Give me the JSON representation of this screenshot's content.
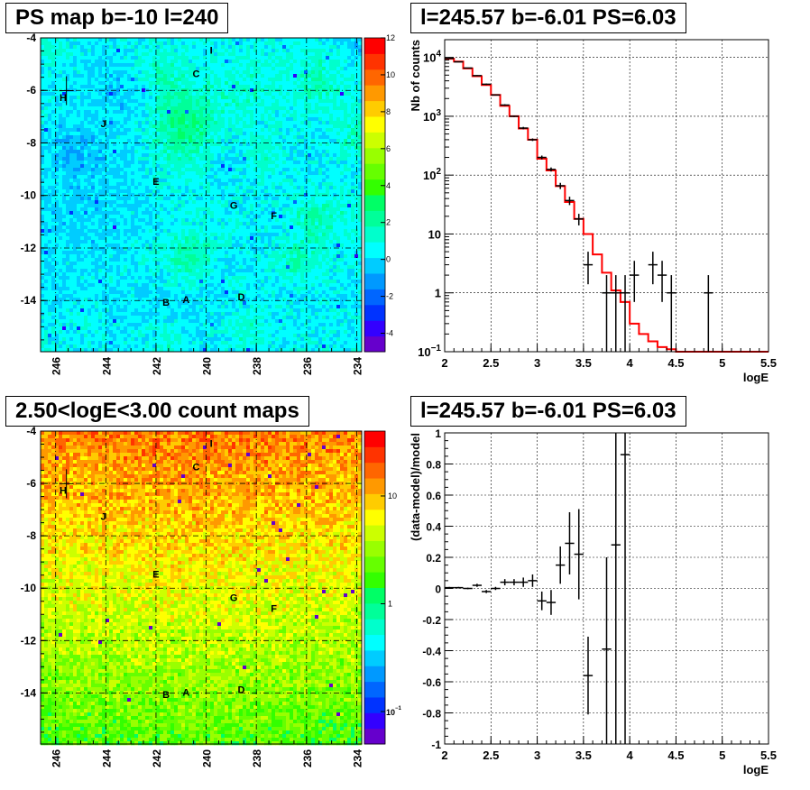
{
  "panels": [
    {
      "title": "PS map b=-10 l=240",
      "chart_data": {
        "type": "heatmap",
        "xlim": [
          246.6,
          233.8
        ],
        "ylim": [
          -15.95,
          -4.0
        ],
        "x_ticks": [
          246,
          244,
          242,
          240,
          238,
          236,
          234
        ],
        "y_ticks": [
          -4,
          -6,
          -8,
          -10,
          -12,
          -14
        ],
        "colorbar_ticks": [
          "12",
          "10",
          "8",
          "6",
          "4",
          "2",
          "0",
          "-2",
          "-4"
        ],
        "zlim": [
          -5,
          12
        ],
        "grid": true,
        "markers": [
          {
            "label": "H",
            "x": 245.7,
            "y": -6.4
          },
          {
            "label": "J",
            "x": 244.1,
            "y": -7.4
          },
          {
            "label": "I",
            "x": 239.8,
            "y": -4.6
          },
          {
            "label": "C",
            "x": 240.4,
            "y": -5.5
          },
          {
            "label": "E",
            "x": 242.0,
            "y": -9.6
          },
          {
            "label": "G",
            "x": 238.9,
            "y": -10.5
          },
          {
            "label": "F",
            "x": 237.3,
            "y": -10.9
          },
          {
            "label": "B",
            "x": 241.6,
            "y": -14.2
          },
          {
            "label": "A",
            "x": 240.8,
            "y": -14.1
          },
          {
            "label": "D",
            "x": 238.6,
            "y": -14.0
          }
        ],
        "cross": {
          "x": 245.57,
          "y": -6.01
        }
      }
    },
    {
      "title": "l=245.57 b=-6.01 PS=6.03",
      "chart_data": {
        "type": "line",
        "xlabel": "logE",
        "ylabel": "Nb of counts",
        "xlim": [
          2,
          5.5
        ],
        "ylim": [
          0.1,
          20000
        ],
        "log_y": true,
        "x_ticks": [
          "2",
          "2.5",
          "3",
          "3.5",
          "4",
          "4.5",
          "5",
          "5.5"
        ],
        "y_ticks": [
          {
            "v": 0.1,
            "base": "10",
            "exp": "−1"
          },
          {
            "v": 1,
            "label": "1"
          },
          {
            "v": 10,
            "label": "10"
          },
          {
            "v": 100,
            "base": "10",
            "exp": "2"
          },
          {
            "v": 1000,
            "base": "10",
            "exp": "3"
          },
          {
            "v": 10000,
            "base": "10",
            "exp": "4"
          }
        ],
        "grid": true,
        "bin_width": 0.1,
        "model_color": "#ff0000",
        "model": [
          [
            2.0,
            9500
          ],
          [
            2.1,
            8500
          ],
          [
            2.2,
            6500
          ],
          [
            2.3,
            4800
          ],
          [
            2.4,
            3400
          ],
          [
            2.5,
            2300
          ],
          [
            2.6,
            1500
          ],
          [
            2.7,
            1000
          ],
          [
            2.8,
            620
          ],
          [
            2.9,
            400
          ],
          [
            3.0,
            190
          ],
          [
            3.1,
            120
          ],
          [
            3.2,
            65
          ],
          [
            3.3,
            35
          ],
          [
            3.4,
            18
          ],
          [
            3.5,
            10
          ],
          [
            3.6,
            4.5
          ],
          [
            3.7,
            2.2
          ],
          [
            3.8,
            1.1
          ],
          [
            3.9,
            0.7
          ],
          [
            4.0,
            0.3
          ],
          [
            4.1,
            0.2
          ],
          [
            4.2,
            0.15
          ],
          [
            4.3,
            0.12
          ],
          [
            4.4,
            0.11
          ],
          [
            4.5,
            0.1
          ],
          [
            4.6,
            0.1
          ],
          [
            4.7,
            0.1
          ],
          [
            4.8,
            0.1
          ],
          [
            4.9,
            0.1
          ],
          [
            5.0,
            0.1
          ],
          [
            5.1,
            0.1
          ],
          [
            5.2,
            0.1
          ],
          [
            5.3,
            0.1
          ],
          [
            5.4,
            0.1
          ]
        ],
        "data": [
          [
            2.05,
            9600,
            9500,
            9700
          ],
          [
            2.15,
            8400,
            8300,
            8500
          ],
          [
            2.25,
            6600,
            6500,
            6700
          ],
          [
            2.35,
            4900,
            4800,
            5000
          ],
          [
            2.45,
            3500,
            3400,
            3600
          ],
          [
            2.55,
            2300,
            2250,
            2350
          ],
          [
            2.65,
            1550,
            1500,
            1600
          ],
          [
            2.75,
            1000,
            970,
            1030
          ],
          [
            2.85,
            630,
            600,
            660
          ],
          [
            2.95,
            400,
            380,
            420
          ],
          [
            3.05,
            200,
            185,
            215
          ],
          [
            3.15,
            125,
            115,
            135
          ],
          [
            3.25,
            66,
            58,
            74
          ],
          [
            3.35,
            37,
            31,
            43
          ],
          [
            3.45,
            18,
            14,
            22
          ],
          [
            3.55,
            3,
            1.4,
            5
          ],
          [
            3.75,
            1,
            0.1,
            2
          ],
          [
            3.85,
            1,
            0.1,
            2
          ],
          [
            3.95,
            1,
            0.1,
            2
          ],
          [
            4.05,
            2,
            0.7,
            3.5
          ],
          [
            4.25,
            3,
            1.4,
            5
          ],
          [
            4.35,
            2,
            0.7,
            3.5
          ],
          [
            4.45,
            1,
            0.1,
            2
          ],
          [
            4.85,
            1,
            0.1,
            2
          ]
        ]
      }
    },
    {
      "title": "2.50<logE<3.00 count maps",
      "chart_data": {
        "type": "heatmap",
        "xlim": [
          246.6,
          233.8
        ],
        "ylim": [
          -15.95,
          -4.0
        ],
        "x_ticks": [
          246,
          244,
          242,
          240,
          238,
          236,
          234
        ],
        "y_ticks": [
          -4,
          -6,
          -8,
          -10,
          -12,
          -14
        ],
        "colorbar_ticks": [
          {
            "v": 10,
            "label": "10"
          },
          {
            "v": 1,
            "label": "1"
          },
          {
            "v": 0.1,
            "base": "10",
            "exp": "−1"
          }
        ],
        "zlim": [
          0.05,
          40
        ],
        "log_z": true,
        "grid": true,
        "markers": [
          {
            "label": "H",
            "x": 245.7,
            "y": -6.4
          },
          {
            "label": "J",
            "x": 244.1,
            "y": -7.4
          },
          {
            "label": "I",
            "x": 239.8,
            "y": -4.6
          },
          {
            "label": "C",
            "x": 240.4,
            "y": -5.5
          },
          {
            "label": "E",
            "x": 242.0,
            "y": -9.6
          },
          {
            "label": "G",
            "x": 238.9,
            "y": -10.5
          },
          {
            "label": "F",
            "x": 237.3,
            "y": -10.9
          },
          {
            "label": "B",
            "x": 241.6,
            "y": -14.2
          },
          {
            "label": "A",
            "x": 240.8,
            "y": -14.1
          },
          {
            "label": "D",
            "x": 238.6,
            "y": -14.0
          }
        ],
        "cross": {
          "x": 245.57,
          "y": -6.01
        }
      }
    },
    {
      "title": "l=245.57 b=-6.01 PS=6.03",
      "chart_data": {
        "type": "scatter",
        "xlabel": "logE",
        "ylabel": "(data-model)/model",
        "xlim": [
          2,
          5.5
        ],
        "ylim": [
          -1,
          1
        ],
        "x_ticks": [
          "2",
          "2.5",
          "3",
          "3.5",
          "4",
          "4.5",
          "5",
          "5.5"
        ],
        "y_ticks": [
          "-1",
          "-0.8",
          "-0.6",
          "-0.4",
          "-0.2",
          "0",
          "0.2",
          "0.4",
          "0.6",
          "0.8",
          "1"
        ],
        "grid": true,
        "bin_width": 0.1,
        "data": [
          [
            2.05,
            0.005,
            0.0,
            0.01
          ],
          [
            2.15,
            0.005,
            0.0,
            0.01
          ],
          [
            2.25,
            0.0,
            -0.005,
            0.005
          ],
          [
            2.35,
            0.02,
            0.01,
            0.03
          ],
          [
            2.45,
            -0.02,
            -0.03,
            -0.01
          ],
          [
            2.55,
            0.0,
            -0.01,
            0.01
          ],
          [
            2.65,
            0.04,
            0.02,
            0.06
          ],
          [
            2.75,
            0.04,
            0.02,
            0.06
          ],
          [
            2.85,
            0.04,
            0.01,
            0.07
          ],
          [
            2.95,
            0.05,
            0.01,
            0.09
          ],
          [
            3.05,
            -0.08,
            -0.14,
            -0.02
          ],
          [
            3.15,
            -0.09,
            -0.17,
            -0.01
          ],
          [
            3.25,
            0.15,
            0.03,
            0.27
          ],
          [
            3.35,
            0.29,
            0.09,
            0.49
          ],
          [
            3.45,
            0.22,
            -0.07,
            0.51
          ],
          [
            3.55,
            -0.56,
            -0.81,
            -0.31
          ],
          [
            3.75,
            -0.39,
            -1.0,
            0.2
          ],
          [
            3.85,
            0.28,
            -1.0,
            1.0
          ],
          [
            3.95,
            0.86,
            -1.0,
            1.0
          ]
        ]
      }
    }
  ]
}
